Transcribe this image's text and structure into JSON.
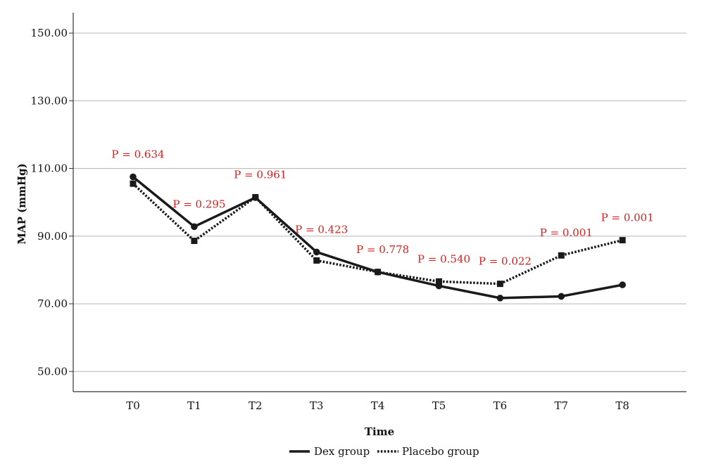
{
  "chart_data": {
    "type": "line",
    "title": "",
    "xlabel": "Time",
    "ylabel": "MAP (mmHg)",
    "categories": [
      "T0",
      "T1",
      "T2",
      "T3",
      "T4",
      "T5",
      "T6",
      "T7",
      "T8"
    ],
    "ylim": [
      45,
      155
    ],
    "yticks": [
      "150.00",
      "130.00",
      "110.00",
      "90.00",
      "70.00",
      "50.00"
    ],
    "grid": "horizontal",
    "series": [
      {
        "name": "Dex group",
        "line_style": "solid",
        "marker": "circle",
        "color": "#1a1a1a",
        "values": [
          107.5,
          92.8,
          101.4,
          85.3,
          79.4,
          75.3,
          71.7,
          72.2,
          75.6
        ]
      },
      {
        "name": "Placebo group",
        "line_style": "dotted",
        "marker": "square",
        "color": "#1a1a1a",
        "values": [
          105.5,
          88.6,
          101.5,
          82.8,
          79.4,
          76.6,
          75.9,
          84.3,
          88.8
        ]
      }
    ],
    "annotations": [
      "P = 0.634",
      "P = 0.295",
      "P = 0.961",
      "P = 0.423",
      "P = 0.778",
      "P = 0.540",
      "P = 0.022",
      "P = 0.001",
      "P = 0.001"
    ],
    "annotation_color": "#d42020",
    "legend_position": "bottom-center"
  }
}
